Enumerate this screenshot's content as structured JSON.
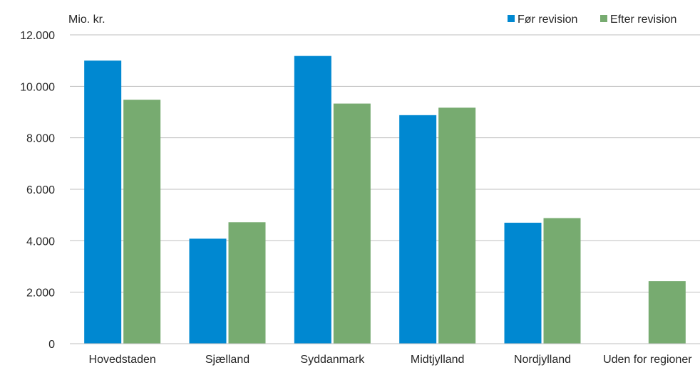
{
  "chart_data": {
    "type": "bar",
    "title": "",
    "ylabel": "Mio. kr.",
    "xlabel": "",
    "categories": [
      "Hovedstaden",
      "Sjælland",
      "Syddanmark",
      "Midtjylland",
      "Nordjylland",
      "Uden for regioner"
    ],
    "series": [
      {
        "name": "Før revision",
        "color": "#0088d1",
        "values": [
          11000,
          4080,
          11180,
          8880,
          4700,
          null
        ]
      },
      {
        "name": "Efter revision",
        "color": "#77ab70",
        "values": [
          9480,
          4720,
          9330,
          9170,
          4880,
          2430
        ]
      }
    ],
    "ylim": [
      0,
      12000
    ],
    "yticks": [
      0,
      2000,
      4000,
      6000,
      8000,
      10000,
      12000
    ],
    "ytick_labels": [
      "0",
      "2.000",
      "4.000",
      "6.000",
      "8.000",
      "10.000",
      "12.000"
    ],
    "grid": true,
    "legend_position": "top-right",
    "colors": {
      "gridline": "#bfbfbf",
      "axis": "#bfbfbf",
      "text": "#262626"
    }
  }
}
